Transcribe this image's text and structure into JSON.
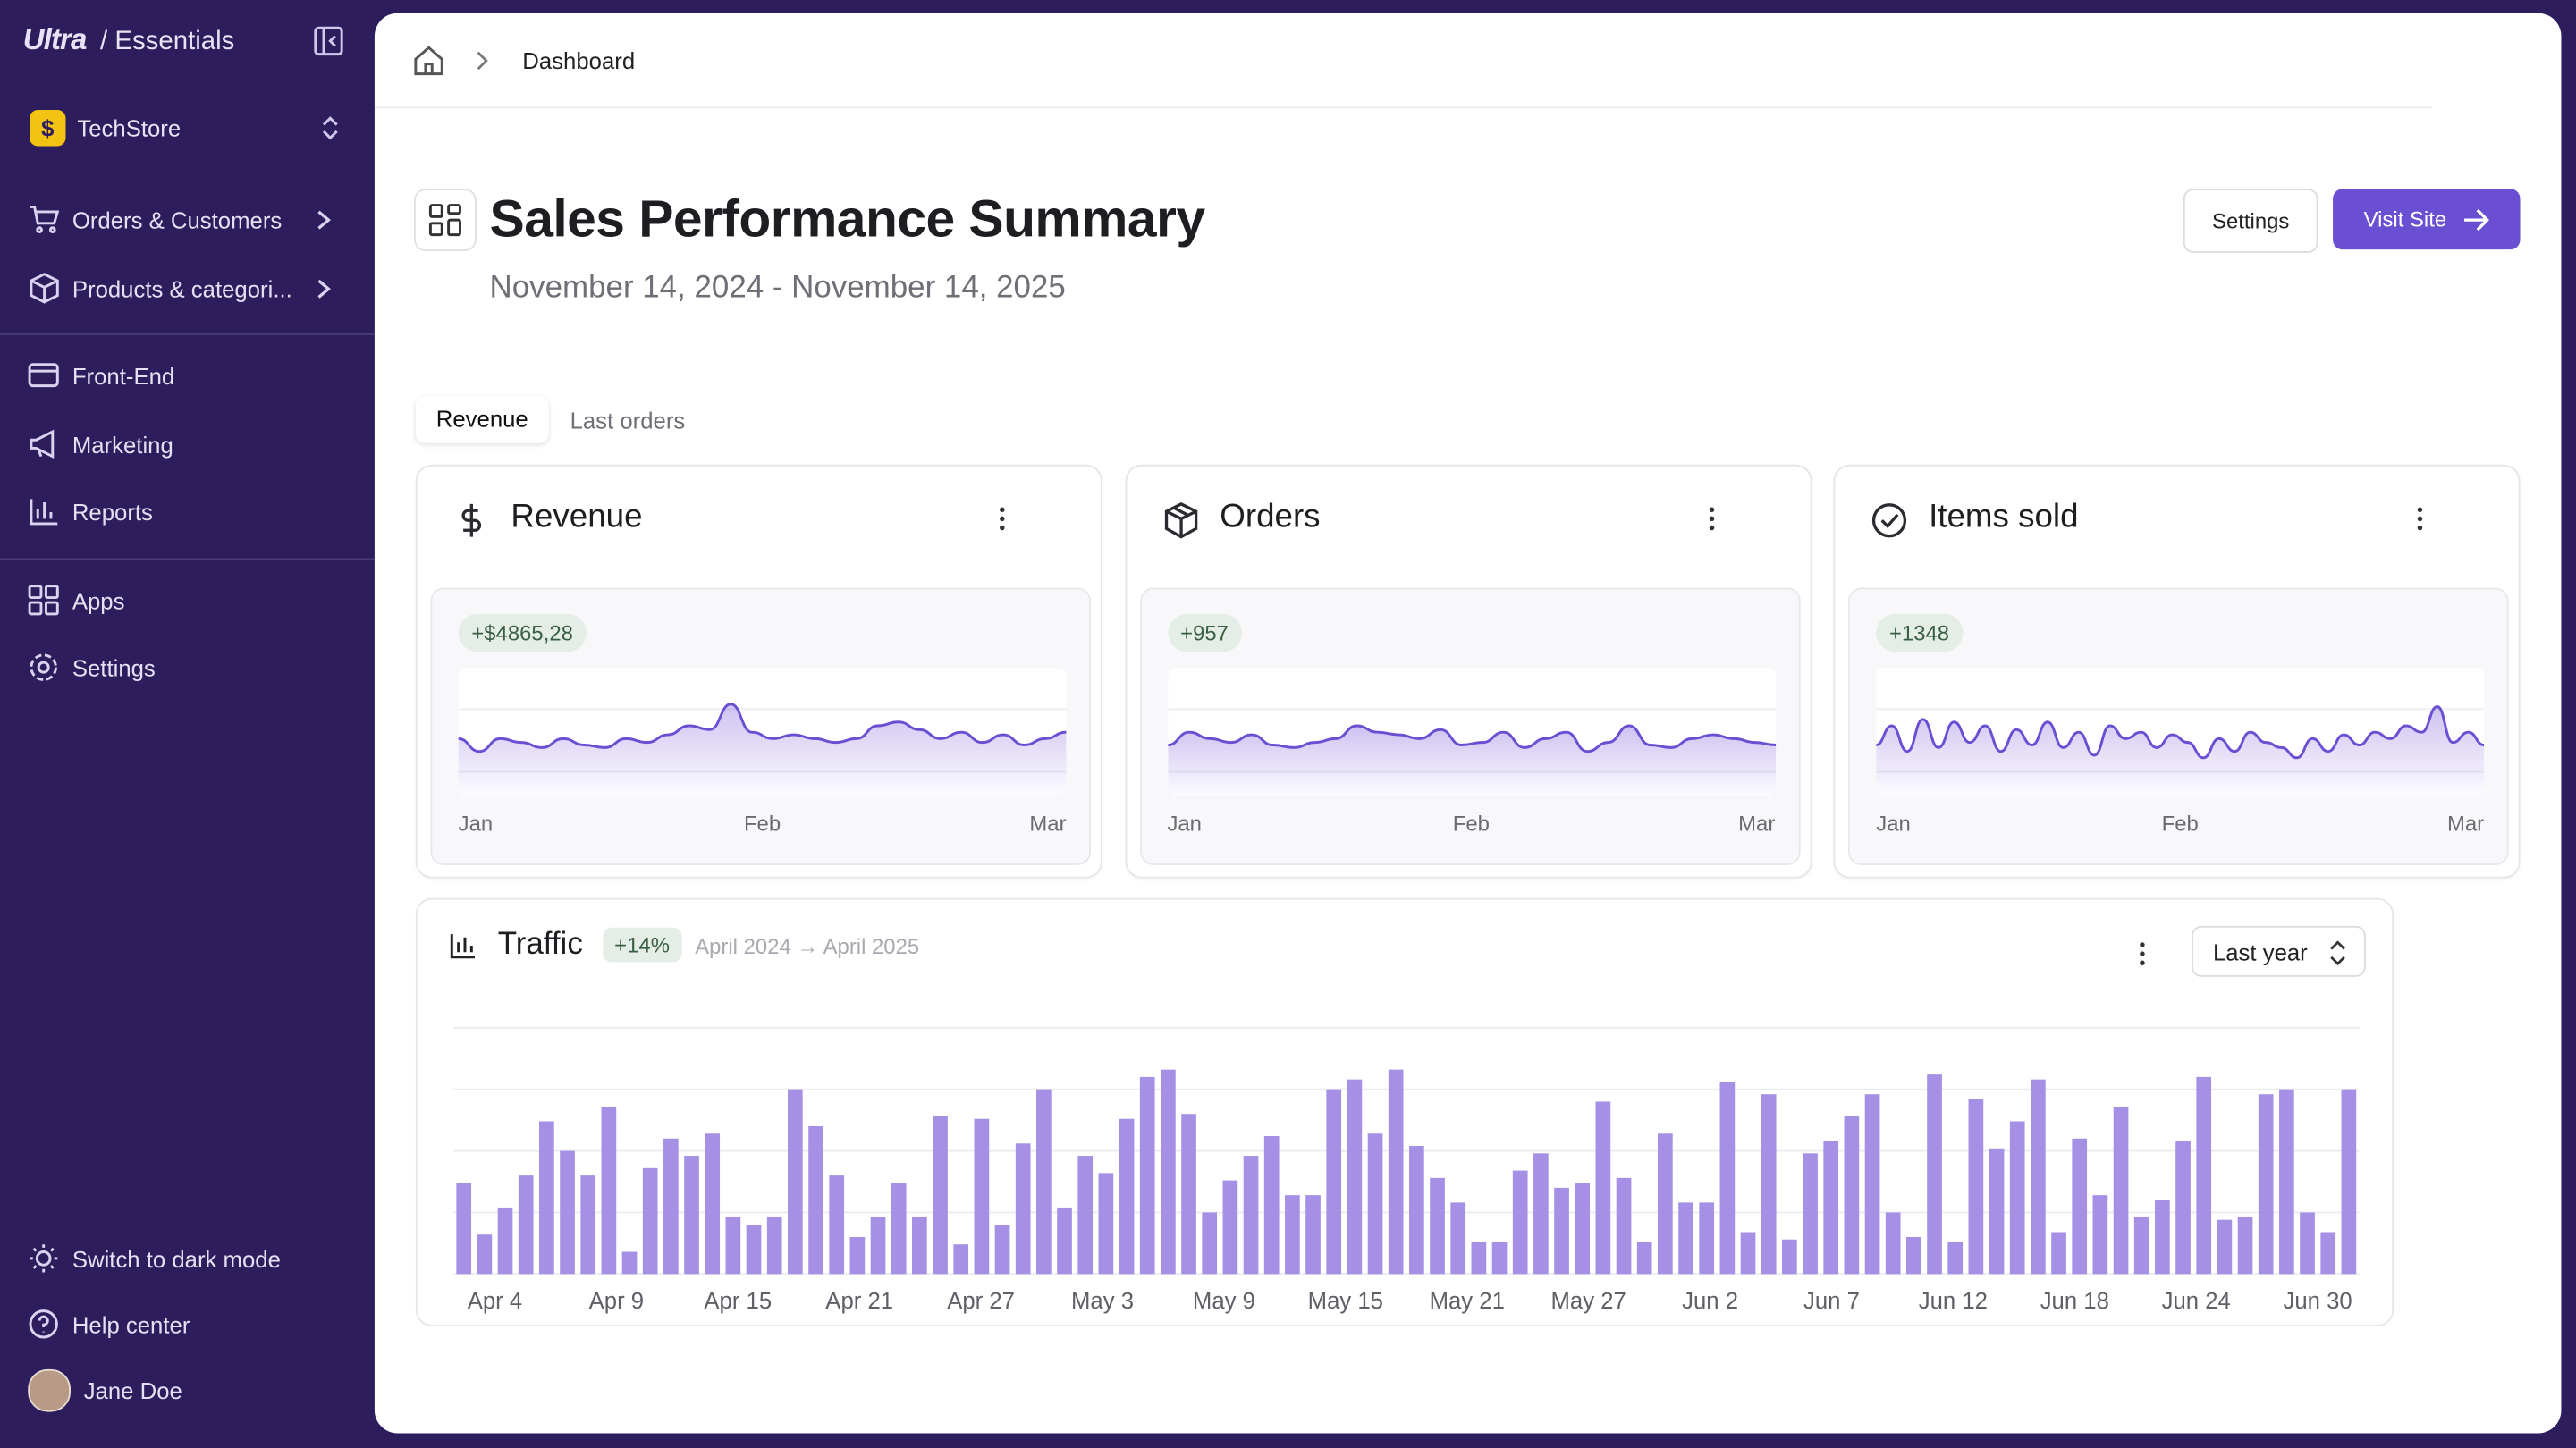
{
  "sidebar": {
    "brand": "Ultra",
    "product": "/ Essentials",
    "store": "TechStore",
    "nav": [
      "Orders & Customers",
      "Products & categori...",
      "Front-End",
      "Marketing",
      "Reports",
      "Apps",
      "Settings"
    ],
    "footer": [
      "Switch to dark mode",
      "Help center",
      "Jane Doe"
    ]
  },
  "breadcrumb": "Dashboard",
  "header": {
    "title": "Sales Performance Summary",
    "date_range": "November 14, 2024 - November 14, 2025",
    "buttons": [
      "Settings",
      "Visit Site"
    ]
  },
  "tabs": [
    "Revenue",
    "Last orders"
  ],
  "cards": [
    {
      "title": "Revenue",
      "badge": "+$4865,28",
      "ylim": [
        0,
        100
      ],
      "values": [
        45,
        35,
        45,
        42,
        38,
        45,
        40,
        38,
        45,
        42,
        48,
        55,
        52,
        72,
        50,
        45,
        48,
        45,
        42,
        45,
        55,
        58,
        52,
        45,
        50,
        42,
        48,
        40,
        45,
        50
      ],
      "xlabels": [
        "Jan",
        "Feb",
        "Mar"
      ]
    },
    {
      "title": "Orders",
      "badge": "+957",
      "ylim": [
        0,
        100
      ],
      "values": [
        40,
        50,
        45,
        42,
        48,
        40,
        38,
        42,
        45,
        55,
        50,
        48,
        45,
        52,
        40,
        42,
        50,
        38,
        45,
        50,
        35,
        42,
        55,
        40,
        38,
        45,
        48,
        45,
        42,
        40
      ],
      "xlabels": [
        "Jan",
        "Feb",
        "Mar"
      ]
    },
    {
      "title": "Items sold",
      "badge": "+1348",
      "ylim": [
        0,
        100
      ],
      "values": [
        40,
        55,
        35,
        60,
        38,
        58,
        42,
        55,
        35,
        52,
        40,
        58,
        38,
        50,
        32,
        55,
        45,
        50,
        38,
        48,
        42,
        30,
        45,
        35,
        50,
        42,
        38,
        30,
        45,
        35,
        48,
        40,
        50,
        45,
        55,
        50,
        70,
        42,
        50,
        40
      ],
      "xlabels": [
        "Jan",
        "Feb",
        "Mar"
      ]
    }
  ],
  "traffic": {
    "title": "Traffic",
    "badge": "+14%",
    "range": "April 2024 → April 2025",
    "select": "Last year",
    "color": "#a590e6",
    "ylim": [
      0,
      100
    ],
    "yticks": [
      0,
      25,
      50,
      75,
      100
    ],
    "values": [
      37,
      16,
      27,
      40,
      62,
      50,
      40,
      68,
      9,
      43,
      55,
      48,
      57,
      23,
      20,
      23,
      75,
      60,
      40,
      15,
      23,
      37,
      23,
      64,
      12,
      63,
      20,
      53,
      75,
      27,
      48,
      41,
      63,
      80,
      83,
      65,
      25,
      38,
      48,
      56,
      32,
      32,
      75,
      79,
      57,
      83,
      52,
      39,
      29,
      13,
      13,
      42,
      49,
      35,
      37,
      70,
      39,
      13,
      57,
      29,
      29,
      78,
      17,
      73,
      14,
      49,
      54,
      64,
      73,
      25,
      15,
      81,
      13,
      71,
      51,
      62,
      79,
      17,
      55,
      32,
      68,
      23,
      30,
      54,
      80,
      22,
      23,
      73,
      75,
      25,
      17,
      75
    ],
    "labels": [
      "Apr 4",
      "Apr 9",
      "Apr 15",
      "Apr 21",
      "Apr 27",
      "May 3",
      "May 9",
      "May 15",
      "May 21",
      "May 27",
      "Jun 2",
      "Jun 7",
      "Jun 12",
      "Jun 18",
      "Jun 24",
      "Jun 30"
    ]
  }
}
